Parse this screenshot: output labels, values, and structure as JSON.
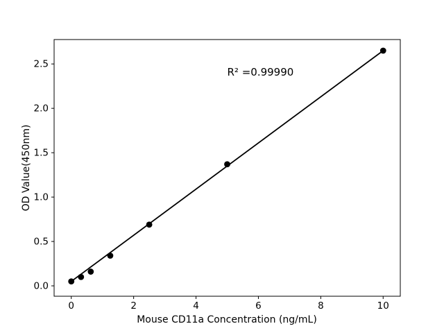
{
  "figure": {
    "background": "#ffffff"
  },
  "chart_data": {
    "type": "scatter",
    "title": "",
    "xlabel": "Mouse CD11a Concentration (ng/mL)",
    "ylabel": "OD Value(450nm)",
    "x": [
      0,
      0.3125,
      0.625,
      1.25,
      2.5,
      5,
      10
    ],
    "y": [
      0.05,
      0.1,
      0.16,
      0.34,
      0.69,
      1.37,
      2.65
    ],
    "trendline": {
      "x": [
        0,
        10
      ],
      "y": [
        0.05,
        2.65
      ]
    },
    "annotation": {
      "text": "R² =0.99990",
      "x": 5.0,
      "y": 2.37
    },
    "xlim": [
      -0.55,
      10.55
    ],
    "ylim": [
      -0.117,
      2.775
    ],
    "x_ticks": {
      "values": [
        0,
        2,
        4,
        6,
        8,
        10
      ],
      "labels": [
        "0",
        "2",
        "4",
        "6",
        "8",
        "10"
      ]
    },
    "y_ticks": {
      "values": [
        0,
        0.5,
        1.0,
        1.5,
        2.0,
        2.5
      ],
      "labels": [
        "0.0",
        "0.5",
        "1.0",
        "1.5",
        "2.0",
        "2.5"
      ]
    },
    "grid": false,
    "legend_position": "none",
    "marker_color": "#000000",
    "line_color": "#000000",
    "axis_color": "#000000"
  }
}
